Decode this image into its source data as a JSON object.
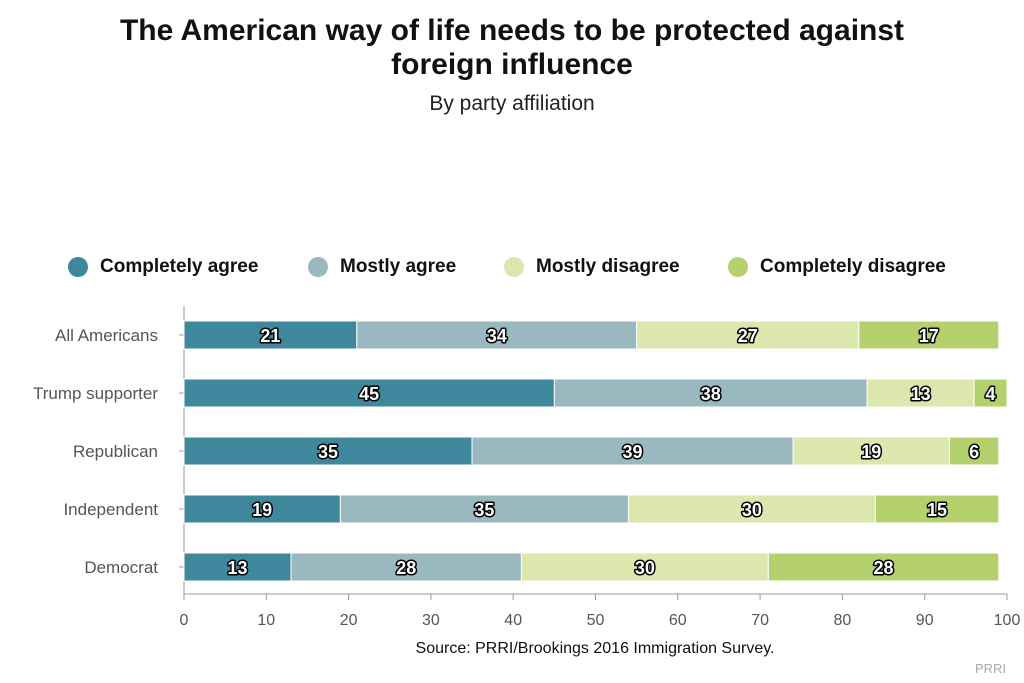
{
  "title": "The American way of life needs to be protected against foreign influence",
  "subtitle": "By party affiliation",
  "source": "Source: PRRI/Brookings 2016 Immigration Survey.",
  "credit": "PRRI",
  "colors": {
    "completely_agree": "#3e879c",
    "mostly_agree": "#9ab8c0",
    "mostly_disagree": "#dce7ae",
    "completely_disagree": "#b5d16e",
    "axis": "#999999",
    "tick_text": "#555555"
  },
  "chart_data": {
    "type": "bar",
    "orientation": "horizontal",
    "stacked": true,
    "title": "The American way of life needs to be protected against foreign influence",
    "subtitle": "By party affiliation",
    "categories": [
      "All Americans",
      "Trump supporter",
      "Republican",
      "Independent",
      "Democrat"
    ],
    "series": [
      {
        "name": "Completely agree",
        "values": [
          21,
          45,
          35,
          19,
          13
        ]
      },
      {
        "name": "Mostly agree",
        "values": [
          34,
          38,
          39,
          35,
          28
        ]
      },
      {
        "name": "Mostly disagree",
        "values": [
          27,
          13,
          19,
          30,
          30
        ]
      },
      {
        "name": "Completely disagree",
        "values": [
          17,
          4,
          6,
          15,
          28
        ]
      }
    ],
    "xlim": [
      0,
      100
    ],
    "xticks": [
      "0",
      "10",
      "20",
      "30",
      "40",
      "50",
      "60",
      "70",
      "80",
      "90",
      "100"
    ],
    "legend_position": "top",
    "grid": false
  }
}
